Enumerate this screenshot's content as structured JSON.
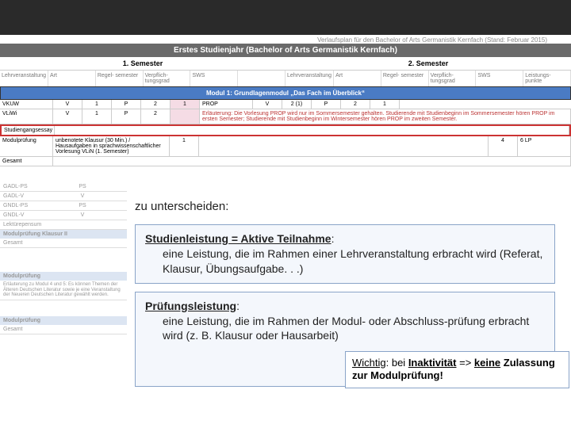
{
  "meta": {
    "caption": "Verlaufsplan für den Bachelor of Arts Germanistik Kernfach (Stand: Februar 2015)"
  },
  "bands": {
    "year": "Erstes Studienjahr (Bachelor of Arts Germanistik Kernfach)",
    "module1": "Modul 1: Grundlagenmodul „Das Fach im Überblick“"
  },
  "sem": {
    "s1": "1. Semester",
    "s2": "2. Semester"
  },
  "hdrs": {
    "lv": "Lehrveranstaltung",
    "art": "Art",
    "regel": "Regel-\nsemester",
    "verpfl": "Verpflich-\ntungsgrad",
    "sws": "SWS",
    "lp": "Leistungs-\npunkte"
  },
  "rows": {
    "r1": {
      "c1": "VKUW",
      "c2": "V",
      "c3": "1",
      "c4": "P",
      "c5": "2",
      "c6": "1"
    },
    "r2": {
      "c1": "VLiWi",
      "c2": "V",
      "c3": "1",
      "c4": "P",
      "c5": "2"
    },
    "r3": {
      "c1": "Studiengangsessay"
    },
    "r4": {
      "c1": "Modulprüfung",
      "c2": "unbenotete Klausur (30 Min.) / Hausaufgaben in sprachwissenschaftlicher Vorlesung VLiN (1. Semester)",
      "c3": "1"
    },
    "r5": {
      "c1": "Gesamt"
    },
    "prop_fwd": {
      "c1": "PROP",
      "c2": "V",
      "c3": "2 (1)",
      "c4": "P",
      "c5": "2",
      "c6": "1"
    },
    "prop_note": "Erläuterung: Die Vorlesung PROP wird nur im Sommersemester gehalten. Studierende mit Studienbeginn im Sommersemester hören PROP im ersten Semester; Studierende mit Studienbeginn im Wintersemester hören PROP im zweiten Semester.",
    "total2": {
      "c1": "4",
      "c2": "6 LP"
    }
  },
  "left": {
    "items": [
      {
        "lab": "GADL-PS",
        "val": "PS"
      },
      {
        "lab": "GADL-V",
        "val": "V"
      },
      {
        "lab": "GNDL-PS",
        "val": "PS"
      },
      {
        "lab": "GNDL-V",
        "val": "V"
      },
      {
        "lab": "Lektürepensum",
        "val": ""
      }
    ],
    "mod1": "Modulprüfung",
    "mod1v": "Klausur II",
    "ges": "Gesamt",
    "mod2": "Modulprüfung",
    "note": "Erläuterung zu Modul 4 und 5: Es können Themen der Älteren Deutschen Literatur sowie je eine Veranstaltung der Neueren Deutschen Literatur gewählt werden.",
    "mod3": "Modulprüfung",
    "ges2": "Gesamt"
  },
  "text": {
    "intro": "zu unterscheiden:",
    "b1_title": "Studienleistung = Aktive Teilnahme",
    "b1_body": "eine Leistung, die im Rahmen einer Lehrveranstaltung erbracht wird (Referat, Klausur, Übungsaufgabe. . .)",
    "b2_title": "Prüfungsleistung",
    "b2_body": "eine Leistung, die im Rahmen der Modul- oder Abschluss-prüfung erbracht wird (z. B. Klausur oder Hausarbeit)",
    "call_pre": "Wichtig",
    "call_mid": ": bei ",
    "call_inakt": "Inaktivität",
    "call_arr": " => ",
    "call_keine": "keine",
    "call_rest": "Zulassung zur Modulprüfung!"
  },
  "colors": {
    "dark": "#2a2a2a",
    "gray": "#6a6a6a",
    "blue": "#4a7bc4",
    "boxBorder": "#8aa4c8",
    "boxBg": "#f4f7fc"
  }
}
